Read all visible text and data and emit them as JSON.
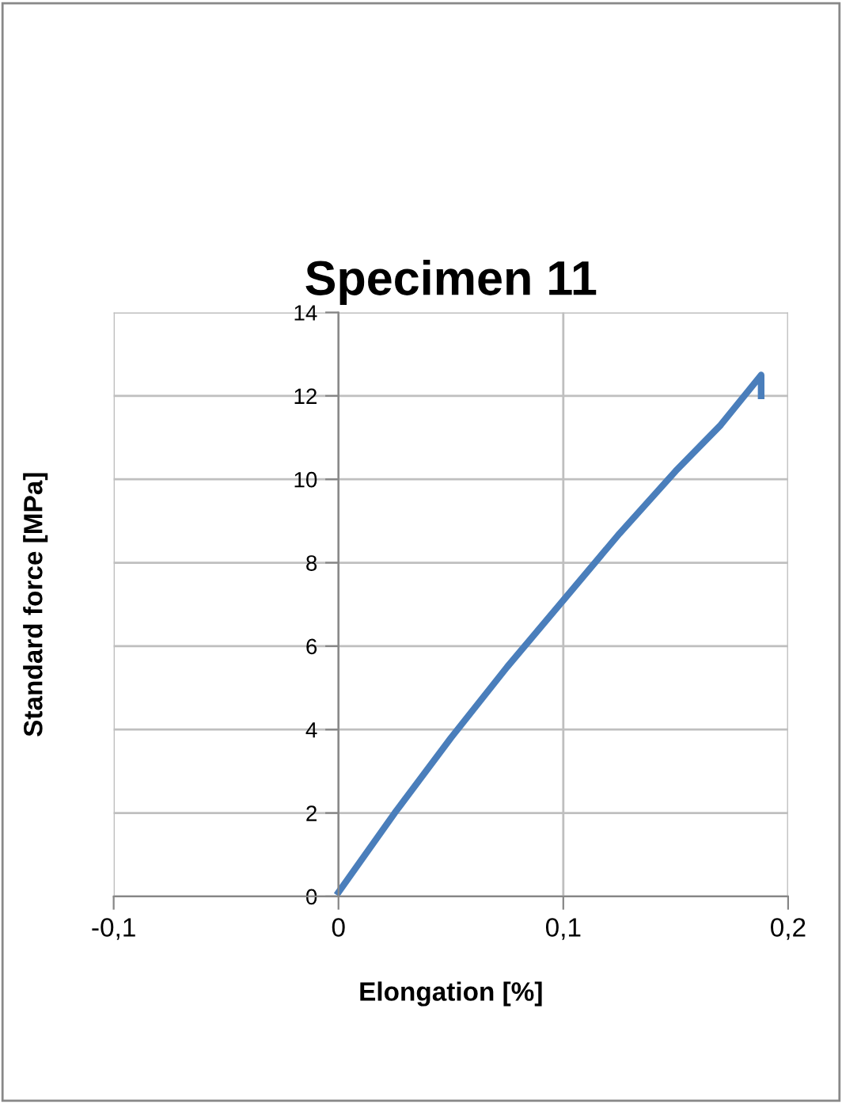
{
  "chart_data": {
    "type": "line",
    "title": "Specimen 11",
    "xlabel": "Elongation [%]",
    "ylabel": "Standard force [MPa]",
    "x": [
      0,
      0.025,
      0.05,
      0.075,
      0.1,
      0.125,
      0.15,
      0.17,
      0.188,
      0.188
    ],
    "series": [
      {
        "color": "#4a7ebb",
        "values": [
          0.1,
          2.0,
          3.8,
          5.5,
          7.1,
          8.7,
          10.2,
          11.3,
          12.5,
          12.0
        ]
      }
    ],
    "xlim": [
      -0.1,
      0.2
    ],
    "xticks": [
      {
        "value": -0.1,
        "label": "-0,1"
      },
      0,
      {
        "value": 0.1,
        "label": "0,1"
      },
      {
        "value": 0.2,
        "label": "0,2"
      }
    ],
    "ylim": [
      0,
      14
    ],
    "yticks": [
      0,
      2,
      4,
      6,
      8,
      10,
      12,
      14
    ],
    "grid": true,
    "legend": false,
    "marker": "none",
    "line_style": "solid"
  }
}
